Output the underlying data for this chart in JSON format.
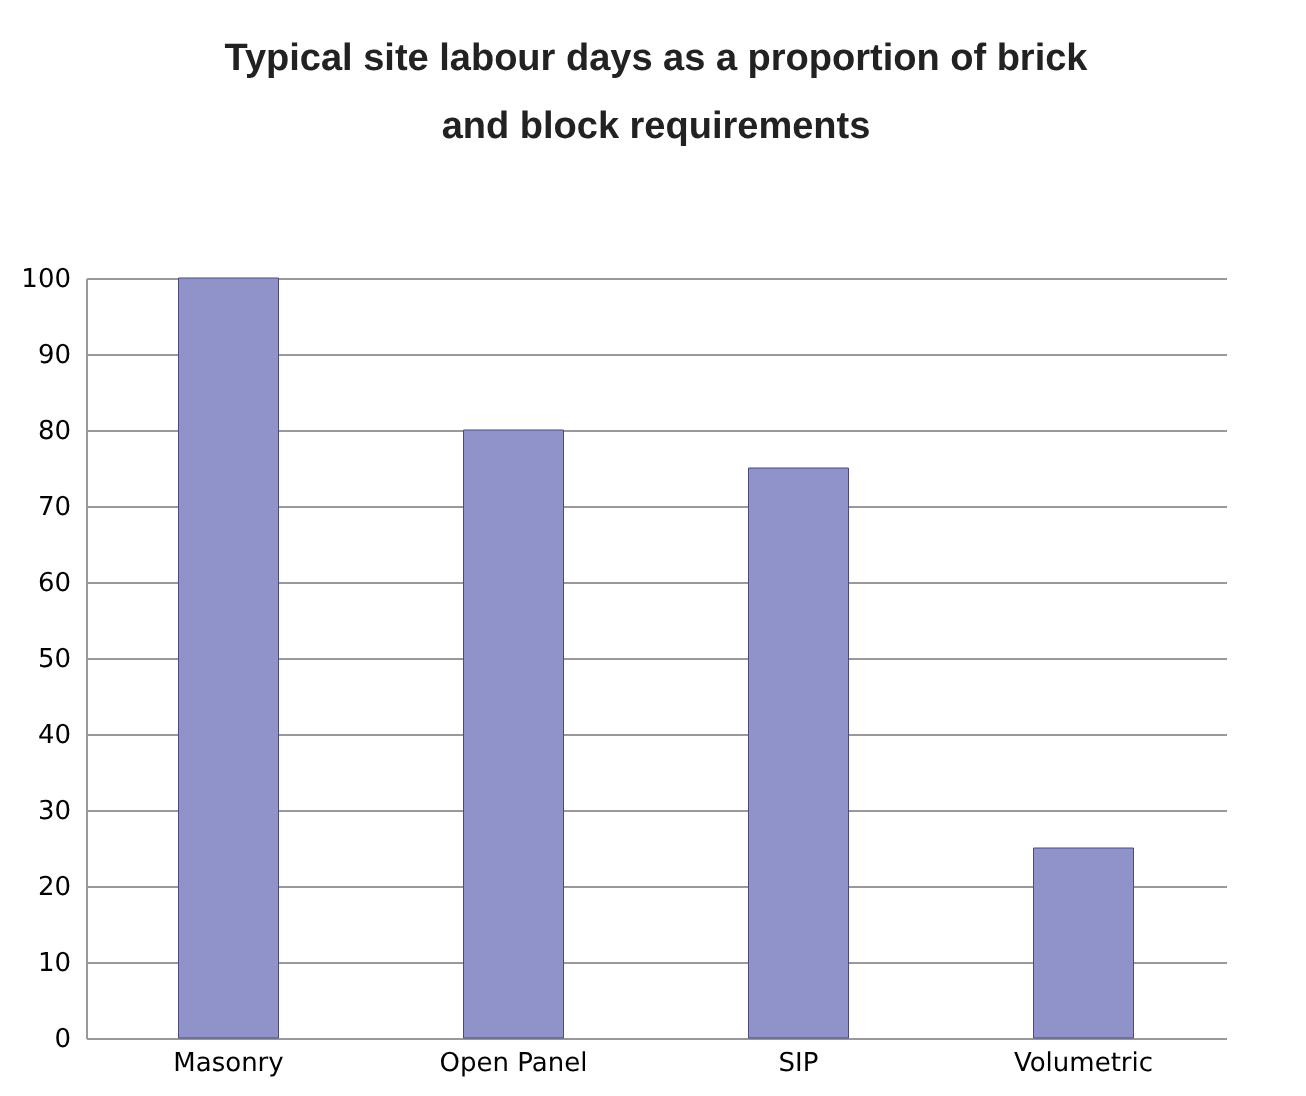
{
  "chart_data": {
    "type": "bar",
    "title": [
      "Typical site labour days as a proportion of brick",
      "and block requirements"
    ],
    "categories": [
      "Masonry",
      "Open Panel",
      "SIP",
      "Volumetric"
    ],
    "values": [
      100,
      80,
      75,
      25
    ],
    "color": "#8f93c9",
    "ylim": [
      0,
      100
    ],
    "yticks": [
      0,
      10,
      20,
      30,
      40,
      50,
      60,
      70,
      80,
      90,
      100
    ],
    "grid": "y"
  }
}
